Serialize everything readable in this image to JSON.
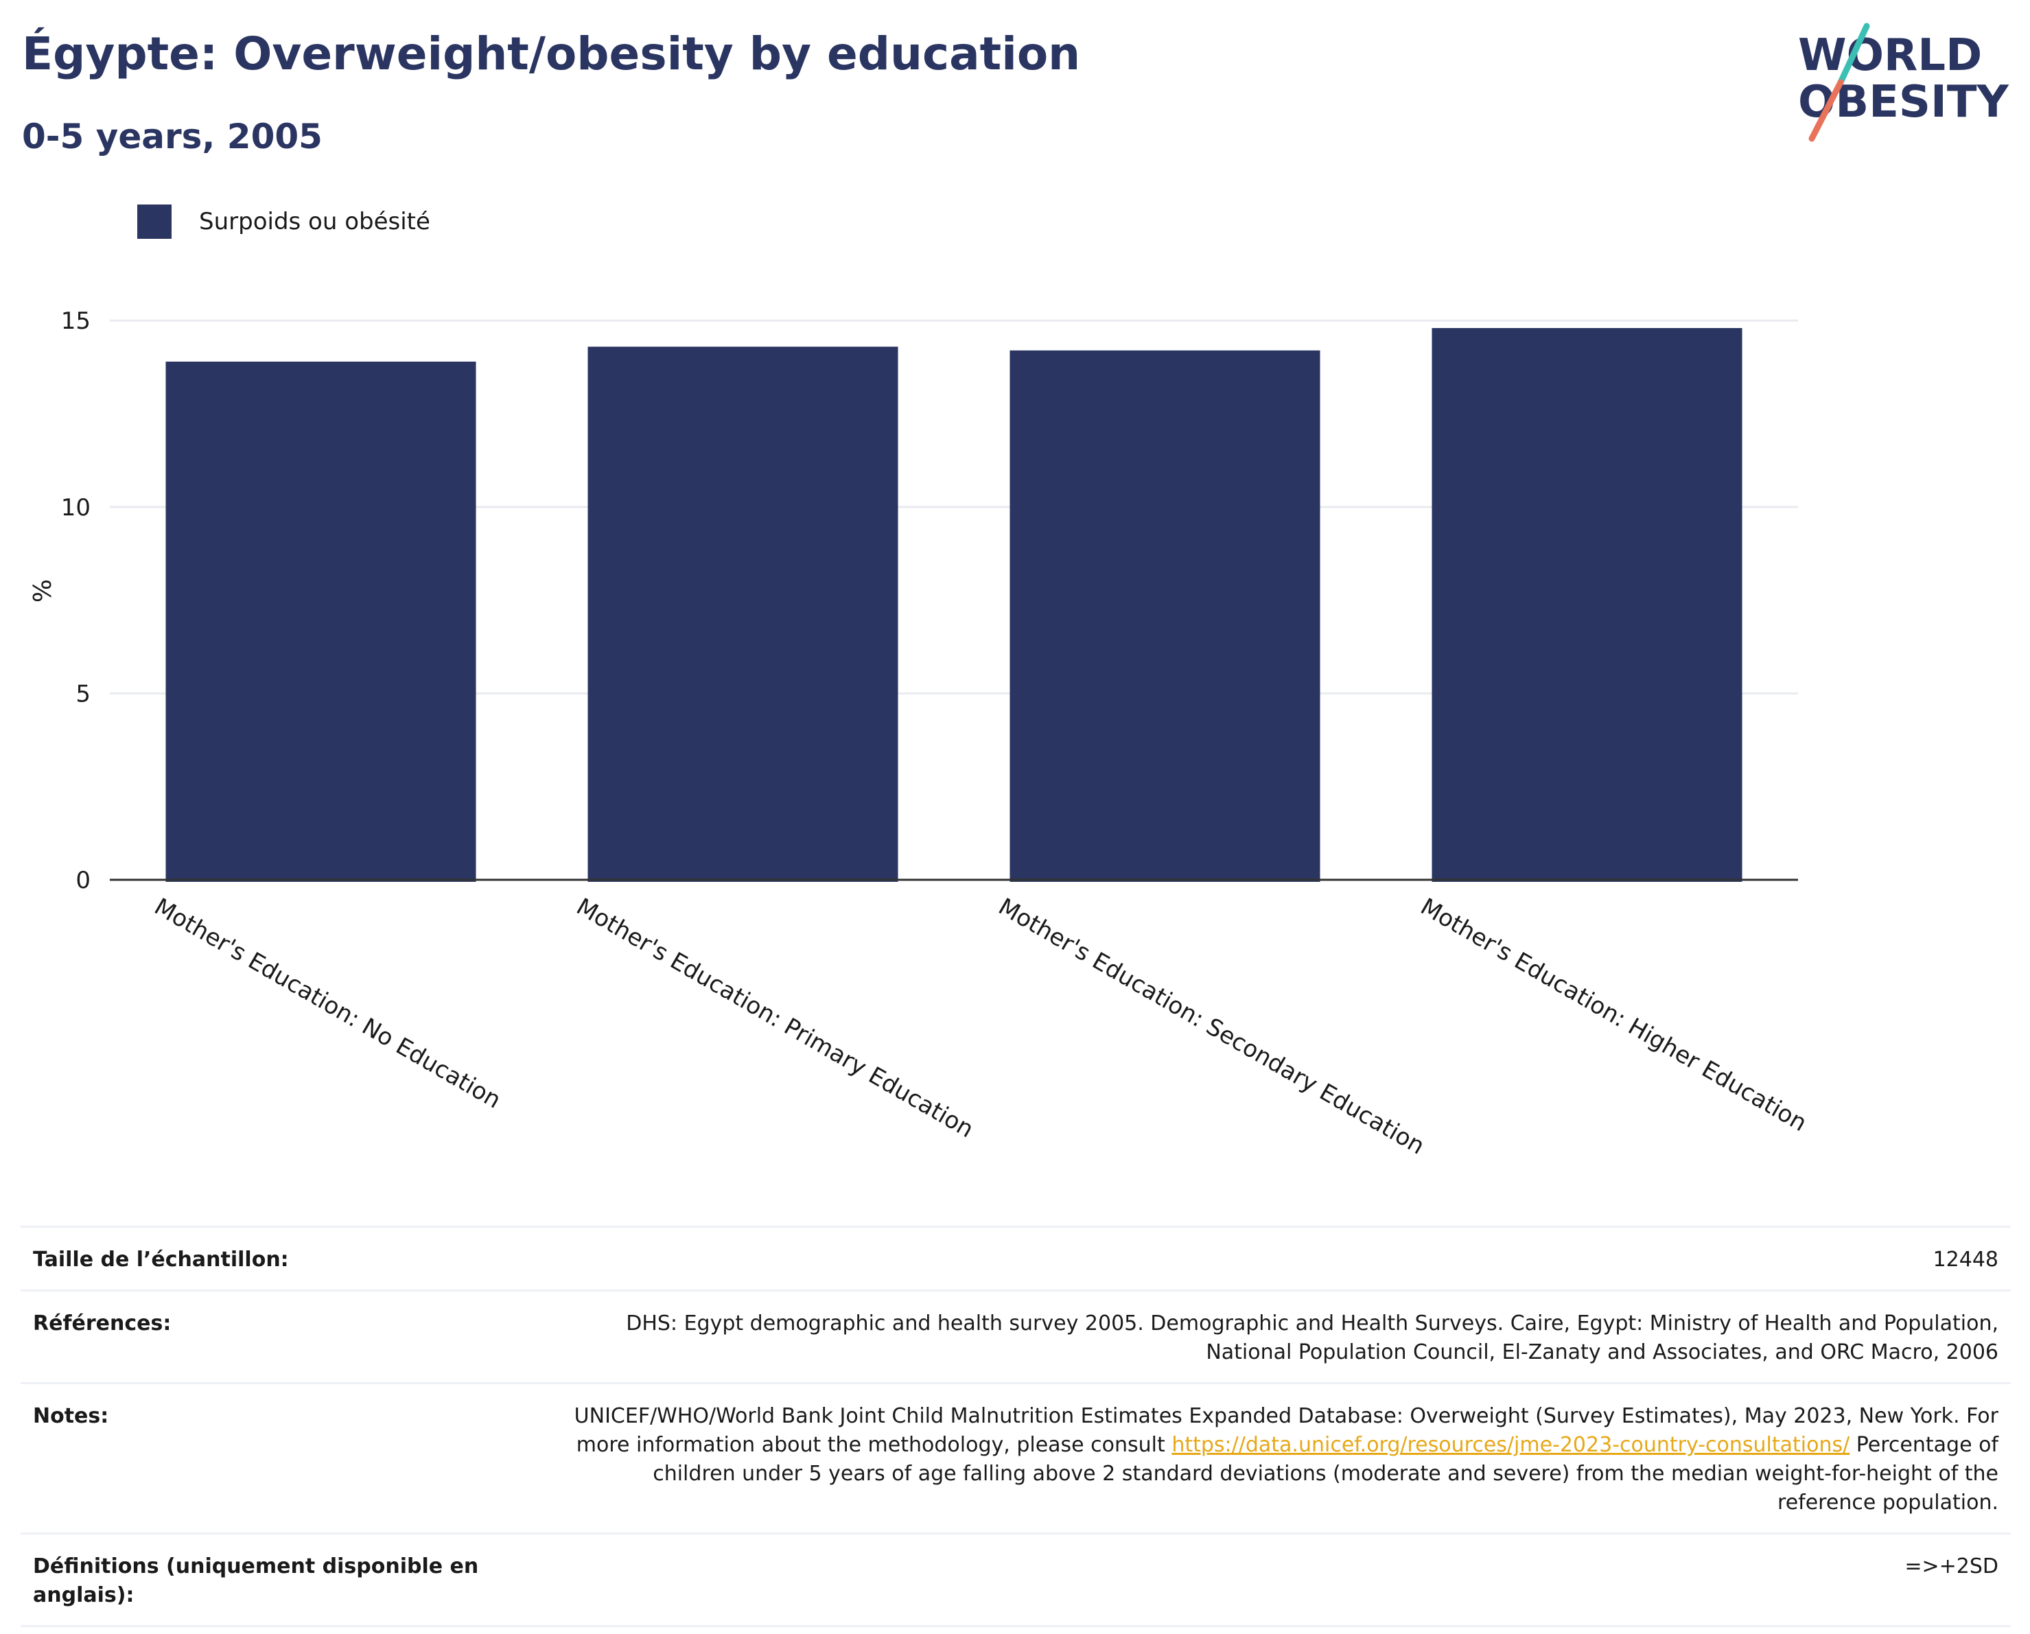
{
  "header": {
    "title": "Égypte: Overweight/obesity by education",
    "subtitle": "0-5 years, 2005"
  },
  "logo": {
    "line1": "WORLD",
    "line2": "OBESITY",
    "colors": {
      "navy": "#2a3561",
      "teal": "#3bbfb4",
      "coral": "#e8735a"
    }
  },
  "chart_data": {
    "type": "bar",
    "categories": [
      "Mother's Education: No Education",
      "Mother's Education: Primary Education",
      "Mother's Education: Secondary Education",
      "Mother's Education: Higher Education"
    ],
    "series": [
      {
        "name": "Surpoids ou obésité",
        "values": [
          13.9,
          14.3,
          14.2,
          14.8
        ],
        "color": "#2a3561"
      }
    ],
    "ylabel": "%",
    "xlabel": "",
    "ylim": [
      0,
      15.5
    ],
    "yticks": [
      0,
      5,
      10,
      15
    ],
    "grid": true,
    "legend_position": "top-left"
  },
  "info": {
    "sample": {
      "label": "Taille de l’échantillon:",
      "value": "12448"
    },
    "references": {
      "label": "Références:",
      "value": "DHS: Egypt demographic and health survey 2005. Demographic and Health Surveys. Caire, Egypt: Ministry of Health and Population, National Population Council, El-Zanaty and Associates, and ORC Macro, 2006"
    },
    "notes": {
      "label": "Notes:",
      "text_before": "UNICEF/WHO/World Bank Joint Child Malnutrition Estimates Expanded Database: Overweight (Survey Estimates), May 2023, New York. For more information about the methodology, please consult",
      "link": "https://data.unicef.org/resources/jme-2023-country-consultations/",
      "text_after": "Percentage of children under 5 years of age falling above 2 standard deviations (moderate and severe) from the median weight-for-height of the reference population."
    },
    "definitions": {
      "label": "Définitions (uniquement disponible en anglais):",
      "value": "=>+2SD"
    }
  }
}
